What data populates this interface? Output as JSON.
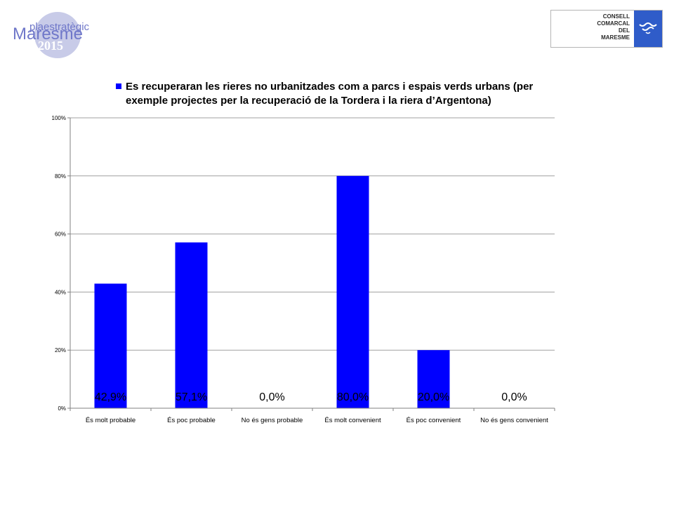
{
  "logo_left": {
    "line1": "plaestratègic",
    "line2": "Maresme",
    "line3": "2015"
  },
  "logo_right": {
    "lines": [
      "CONSELL",
      "COMARCAL",
      "DEL",
      "MARESME"
    ]
  },
  "colors": {
    "bar": "#0000ff",
    "grid": "#a0a0a0",
    "axis": "#808080",
    "logo_blue": "#2f5cc9",
    "logo_circle": "#c8cbe8"
  },
  "icons": {
    "right_logo": "wave-emblem-icon"
  },
  "chart_data": {
    "type": "bar",
    "categories": [
      "És molt probable",
      "És poc probable",
      "No és gens probable",
      "És molt convenient",
      "És poc convenient",
      "No és gens convenient"
    ],
    "series": [
      {
        "name": "Es recuperaran les rieres no urbanitzades com a parcs i espais verds urbans (per exemple projectes per la recuperació de la Tordera i la riera d’Argentona)",
        "values": [
          42.9,
          57.1,
          0.0,
          80.0,
          20.0,
          0.0
        ]
      }
    ],
    "data_labels": [
      "42,9%",
      "57,1%",
      "0,0%",
      "80,0%",
      "20,0%",
      "0,0%"
    ],
    "legend_lines": [
      "Es recuperaran les rieres no urbanitzades com a parcs i espais verds urbans (per",
      "exemple projectes per la recuperació de la Tordera i la riera d’Argentona)"
    ],
    "y_ticks": [
      {
        "value": 0,
        "label": "0%"
      },
      {
        "value": 20,
        "label": "20%"
      },
      {
        "value": 40,
        "label": "40%"
      },
      {
        "value": 60,
        "label": "60%"
      },
      {
        "value": 80,
        "label": "80%"
      },
      {
        "value": 100,
        "label": "100%"
      }
    ],
    "ylim": [
      0,
      100
    ],
    "grid": true,
    "legend_position": "top"
  }
}
